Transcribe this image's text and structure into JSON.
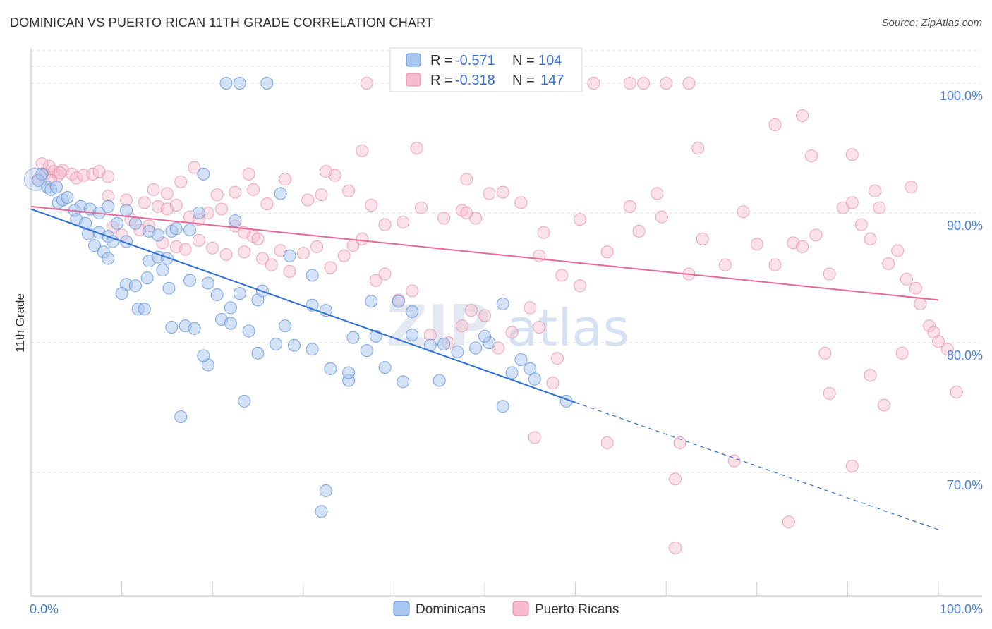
{
  "title": "DOMINICAN VS PUERTO RICAN 11TH GRADE CORRELATION CHART",
  "source": "Source: ZipAtlas.com",
  "watermark": {
    "zip": "ZIP",
    "atlas": "atlas"
  },
  "colors": {
    "dominican_fill": "#a9c6f0",
    "dominican_stroke": "#5b8fd9",
    "dominican_line": "#2b6fd4",
    "puerto_fill": "#f6bccd",
    "puerto_stroke": "#e68aa6",
    "puerto_line": "#e4699a",
    "tick": "#4a7fd4",
    "grid": "#dddddd"
  },
  "legend": {
    "rows": [
      {
        "r_label": "R = ",
        "r_value": "-0.571",
        "n_label": "N = ",
        "n_value": "104"
      },
      {
        "r_label": "R = ",
        "r_value": "-0.318",
        "n_label": "N = ",
        "n_value": "147"
      }
    ]
  },
  "chart_data": {
    "type": "scatter",
    "title": "DOMINICAN VS PUERTO RICAN 11TH GRADE CORRELATION CHART",
    "xlabel": "",
    "ylabel": "11th Grade",
    "xlim": [
      0,
      100
    ],
    "ylim": [
      60.5,
      102.5
    ],
    "x_tick_labels": [
      "0.0%",
      "100.0%"
    ],
    "y_ticks": [
      70,
      80,
      90,
      100
    ],
    "y_tick_labels": [
      "70.0%",
      "80.0%",
      "90.0%",
      "100.0%"
    ],
    "grid": true,
    "legend_position": "top-center",
    "series": [
      {
        "name": "Dominicans",
        "trend": {
          "x": [
            0,
            60,
            100
          ],
          "y": [
            90.3,
            75.4,
            65.6
          ],
          "solid_until": 60
        },
        "points": [
          [
            0.8,
            92.5
          ],
          [
            1.2,
            93.0
          ],
          [
            1.8,
            92.0
          ],
          [
            2.2,
            91.8
          ],
          [
            2.8,
            92.0
          ],
          [
            3.0,
            90.8
          ],
          [
            3.5,
            91.0
          ],
          [
            4.0,
            91.2
          ],
          [
            4.8,
            90.2
          ],
          [
            5.5,
            90.5
          ],
          [
            6.5,
            90.3
          ],
          [
            7.5,
            90.0
          ],
          [
            8.5,
            90.5
          ],
          [
            9.5,
            89.2
          ],
          [
            10.5,
            90.2
          ],
          [
            5.0,
            89.5
          ],
          [
            6.0,
            89.2
          ],
          [
            6.3,
            88.4
          ],
          [
            7.5,
            88.5
          ],
          [
            8.5,
            88.2
          ],
          [
            9.0,
            87.8
          ],
          [
            10.5,
            87.8
          ],
          [
            11.5,
            89.2
          ],
          [
            13.0,
            88.6
          ],
          [
            14.0,
            88.3
          ],
          [
            15.5,
            88.6
          ],
          [
            16.0,
            88.8
          ],
          [
            17.5,
            88.7
          ],
          [
            18.5,
            90.0
          ],
          [
            7.0,
            87.5
          ],
          [
            8.0,
            87.0
          ],
          [
            8.5,
            86.5
          ],
          [
            13.0,
            86.3
          ],
          [
            14.0,
            86.6
          ],
          [
            15.0,
            86.5
          ],
          [
            14.5,
            85.6
          ],
          [
            10.5,
            84.5
          ],
          [
            10.0,
            83.8
          ],
          [
            11.5,
            84.4
          ],
          [
            12.8,
            85.0
          ],
          [
            15.2,
            84.2
          ],
          [
            17.5,
            84.8
          ],
          [
            19.5,
            84.6
          ],
          [
            20.5,
            83.7
          ],
          [
            23.0,
            83.8
          ],
          [
            25.0,
            83.3
          ],
          [
            25.5,
            84.0
          ],
          [
            28.5,
            86.7
          ],
          [
            31.0,
            85.2
          ],
          [
            31.0,
            82.9
          ],
          [
            11.8,
            82.6
          ],
          [
            12.5,
            82.6
          ],
          [
            15.5,
            81.2
          ],
          [
            17.0,
            81.3
          ],
          [
            18.0,
            81.1
          ],
          [
            21.0,
            81.8
          ],
          [
            22.0,
            81.5
          ],
          [
            22.0,
            82.7
          ],
          [
            25.0,
            79.2
          ],
          [
            27.0,
            79.9
          ],
          [
            29.0,
            79.8
          ],
          [
            31.0,
            79.5
          ],
          [
            33.0,
            78.0
          ],
          [
            35.0,
            77.1
          ],
          [
            35.5,
            80.4
          ],
          [
            37.0,
            79.4
          ],
          [
            38.0,
            80.5
          ],
          [
            39.0,
            78.1
          ],
          [
            40.5,
            83.2
          ],
          [
            42.0,
            82.4
          ],
          [
            44.0,
            79.8
          ],
          [
            45.5,
            79.9
          ],
          [
            47.0,
            79.3
          ],
          [
            49.0,
            79.6
          ],
          [
            50.5,
            80.0
          ],
          [
            52.0,
            83.0
          ],
          [
            54.0,
            78.7
          ],
          [
            55.0,
            78.0
          ],
          [
            55.5,
            77.2
          ],
          [
            59.0,
            75.5
          ],
          [
            52.0,
            75.1
          ],
          [
            41.0,
            77.0
          ],
          [
            45.0,
            77.1
          ],
          [
            35.0,
            77.7
          ],
          [
            16.5,
            74.3
          ],
          [
            23.5,
            75.5
          ],
          [
            32.5,
            82.5
          ],
          [
            37.5,
            83.2
          ],
          [
            42.0,
            80.6
          ],
          [
            50.0,
            80.5
          ],
          [
            53.0,
            77.7
          ],
          [
            22.5,
            89.4
          ],
          [
            27.5,
            91.5
          ],
          [
            19.0,
            93.0
          ],
          [
            21.5,
            100.0
          ],
          [
            23.0,
            100.0
          ],
          [
            26.0,
            100.0
          ],
          [
            32.5,
            68.6
          ],
          [
            32.0,
            67.0
          ],
          [
            19.5,
            78.3
          ],
          [
            19.0,
            79.0
          ],
          [
            24.0,
            80.9
          ],
          [
            28.0,
            81.3
          ]
        ]
      },
      {
        "name": "Puerto Ricans",
        "trend": {
          "x": [
            0,
            100
          ],
          "y": [
            90.5,
            83.3
          ]
        },
        "points": [
          [
            0.8,
            92.6
          ],
          [
            1.5,
            93.0
          ],
          [
            2.0,
            93.6
          ],
          [
            2.5,
            93.2
          ],
          [
            3.0,
            92.9
          ],
          [
            3.5,
            93.3
          ],
          [
            4.5,
            93.0
          ],
          [
            5.0,
            92.7
          ],
          [
            5.8,
            92.9
          ],
          [
            6.8,
            93.0
          ],
          [
            7.5,
            93.2
          ],
          [
            8.5,
            92.8
          ],
          [
            1.2,
            93.8
          ],
          [
            2.2,
            92.5
          ],
          [
            3.2,
            93.1
          ],
          [
            8.5,
            91.3
          ],
          [
            10.5,
            91.0
          ],
          [
            12.5,
            90.8
          ],
          [
            14.0,
            90.5
          ],
          [
            15.0,
            90.3
          ],
          [
            16.0,
            90.6
          ],
          [
            17.5,
            89.7
          ],
          [
            18.5,
            89.5
          ],
          [
            19.5,
            90.0
          ],
          [
            21.0,
            90.3
          ],
          [
            22.5,
            89.0
          ],
          [
            23.5,
            88.5
          ],
          [
            24.5,
            88.2
          ],
          [
            25.0,
            88.0
          ],
          [
            9.0,
            88.9
          ],
          [
            10.0,
            88.3
          ],
          [
            11.0,
            89.5
          ],
          [
            12.0,
            88.7
          ],
          [
            13.0,
            89.0
          ],
          [
            14.5,
            87.7
          ],
          [
            16.0,
            87.4
          ],
          [
            17.0,
            87.2
          ],
          [
            18.5,
            87.9
          ],
          [
            20.0,
            87.3
          ],
          [
            21.5,
            86.8
          ],
          [
            23.5,
            87.0
          ],
          [
            25.5,
            86.5
          ],
          [
            26.5,
            86.0
          ],
          [
            27.5,
            87.1
          ],
          [
            28.5,
            85.5
          ],
          [
            30.0,
            86.9
          ],
          [
            31.5,
            87.4
          ],
          [
            33.0,
            85.8
          ],
          [
            34.5,
            86.7
          ],
          [
            35.5,
            87.5
          ],
          [
            36.5,
            88.0
          ],
          [
            38.0,
            84.8
          ],
          [
            39.0,
            85.3
          ],
          [
            40.5,
            83.3
          ],
          [
            42.0,
            84.0
          ],
          [
            44.0,
            80.6
          ],
          [
            46.0,
            80.0
          ],
          [
            47.5,
            81.3
          ],
          [
            48.5,
            82.5
          ],
          [
            50.0,
            82.1
          ],
          [
            51.5,
            79.6
          ],
          [
            53.0,
            80.8
          ],
          [
            55.0,
            82.7
          ],
          [
            56.0,
            81.2
          ],
          [
            13.5,
            91.8
          ],
          [
            15.0,
            91.5
          ],
          [
            16.5,
            92.4
          ],
          [
            18.0,
            93.5
          ],
          [
            20.5,
            91.4
          ],
          [
            22.5,
            91.6
          ],
          [
            24.5,
            91.8
          ],
          [
            26.0,
            90.7
          ],
          [
            28.0,
            92.6
          ],
          [
            30.5,
            91.0
          ],
          [
            32.0,
            91.4
          ],
          [
            33.5,
            92.9
          ],
          [
            35.0,
            91.7
          ],
          [
            37.5,
            90.6
          ],
          [
            39.0,
            89.1
          ],
          [
            41.0,
            89.3
          ],
          [
            43.0,
            90.4
          ],
          [
            45.5,
            89.6
          ],
          [
            47.5,
            90.2
          ],
          [
            49.0,
            89.6
          ],
          [
            50.5,
            91.5
          ],
          [
            52.0,
            91.6
          ],
          [
            54.0,
            90.8
          ],
          [
            56.5,
            88.5
          ],
          [
            24.0,
            93.0
          ],
          [
            32.5,
            93.2
          ],
          [
            36.5,
            94.8
          ],
          [
            42.5,
            95.0
          ],
          [
            48.0,
            90.0
          ],
          [
            56.0,
            86.7
          ],
          [
            58.5,
            85.2
          ],
          [
            60.5,
            84.4
          ],
          [
            63.5,
            87.0
          ],
          [
            67.0,
            88.6
          ],
          [
            69.5,
            89.7
          ],
          [
            72.5,
            85.3
          ],
          [
            74.0,
            88.0
          ],
          [
            76.5,
            86.0
          ],
          [
            78.5,
            90.1
          ],
          [
            80.0,
            87.6
          ],
          [
            82.0,
            86.0
          ],
          [
            84.0,
            87.7
          ],
          [
            85.0,
            87.4
          ],
          [
            86.5,
            88.3
          ],
          [
            88.0,
            85.3
          ],
          [
            89.5,
            90.4
          ],
          [
            90.5,
            90.8
          ],
          [
            91.5,
            89.1
          ],
          [
            92.5,
            88.0
          ],
          [
            93.5,
            90.4
          ],
          [
            94.5,
            86.1
          ],
          [
            95.5,
            87.1
          ],
          [
            96.5,
            84.9
          ],
          [
            97.5,
            84.2
          ],
          [
            98.0,
            83.0
          ],
          [
            99.0,
            81.3
          ],
          [
            99.5,
            80.8
          ],
          [
            100.0,
            80.1
          ],
          [
            101.0,
            79.5
          ],
          [
            102.0,
            76.2
          ],
          [
            86.0,
            94.4
          ],
          [
            93.0,
            91.7
          ],
          [
            97.0,
            92.0
          ],
          [
            90.5,
            94.5
          ],
          [
            85.0,
            97.5
          ],
          [
            82.0,
            96.8
          ],
          [
            73.5,
            95.0
          ],
          [
            69.0,
            91.5
          ],
          [
            66.0,
            90.5
          ],
          [
            60.5,
            89.5
          ],
          [
            57.5,
            76.9
          ],
          [
            58.0,
            78.8
          ],
          [
            55.5,
            72.7
          ],
          [
            63.5,
            72.3
          ],
          [
            71.5,
            72.3
          ],
          [
            71.0,
            69.5
          ],
          [
            77.5,
            70.9
          ],
          [
            83.5,
            66.2
          ],
          [
            88.0,
            76.1
          ],
          [
            90.5,
            70.5
          ],
          [
            92.5,
            77.5
          ],
          [
            94.0,
            75.2
          ],
          [
            96.0,
            79.2
          ],
          [
            87.5,
            79.2
          ],
          [
            71.0,
            64.2
          ],
          [
            60.0,
            100.0
          ],
          [
            62.0,
            100.0
          ],
          [
            66.0,
            100.0
          ],
          [
            67.5,
            100.0
          ],
          [
            70.0,
            100.0
          ],
          [
            72.5,
            100.0
          ],
          [
            37.0,
            100.0
          ],
          [
            48.0,
            92.6
          ]
        ]
      }
    ]
  },
  "bottom_legend": {
    "items": [
      "Dominicans",
      "Puerto Ricans"
    ]
  }
}
